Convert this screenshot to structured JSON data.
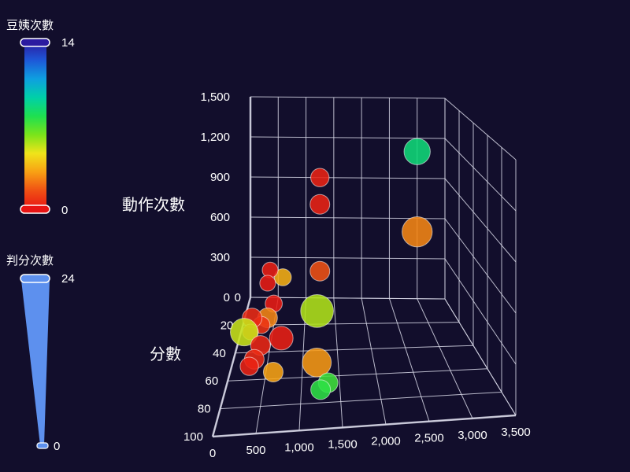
{
  "chart_data": {
    "type": "scatter3d",
    "visual_maps": {
      "color": {
        "title": "豆姨次數",
        "max": 14,
        "min": 0,
        "colors": [
          "#2b1aa0",
          "#1e58d8",
          "#0ea0e0",
          "#00d0a8",
          "#1ee050",
          "#7ae41a",
          "#f0e41a",
          "#f8a014",
          "#f05014",
          "#e81414"
        ]
      },
      "size": {
        "title": "判分次數",
        "max": 24,
        "min": 0,
        "color": "#5d90ee"
      }
    },
    "axes": {
      "y_name": "動作次數",
      "x_name": "分數",
      "y_ticks": [
        "1,500",
        "1,200",
        "900",
        "600",
        "300",
        "0"
      ],
      "x_ticks": [
        "0",
        "20",
        "40",
        "60",
        "80",
        "100"
      ],
      "z_ticks": [
        "0",
        "500",
        "1,000",
        "1,500",
        "2,000",
        "2,500",
        "3,000",
        "3,500"
      ],
      "x_range": [
        0,
        100
      ],
      "y_range": [
        0,
        1500
      ],
      "z_range": [
        0,
        3500
      ],
      "grid": true
    },
    "points": [
      {
        "x": 0,
        "y": 1100,
        "z": 3000,
        "color": 8.5,
        "size": 14
      },
      {
        "x": 0,
        "y": 500,
        "z": 3000,
        "color": 2.6,
        "size": 17
      },
      {
        "x": 0,
        "y": 900,
        "z": 1250,
        "color": 0.4,
        "size": 8
      },
      {
        "x": 0,
        "y": 700,
        "z": 1250,
        "color": 0.4,
        "size": 9
      },
      {
        "x": 0,
        "y": 200,
        "z": 1250,
        "color": 1.6,
        "size": 9
      },
      {
        "x": 10,
        "y": 0,
        "z": 1200,
        "color": 5.5,
        "size": 19
      },
      {
        "x": 5,
        "y": 200,
        "z": 600,
        "color": 3.5,
        "size": 7
      },
      {
        "x": 10,
        "y": 300,
        "z": 400,
        "color": 0.3,
        "size": 6
      },
      {
        "x": 15,
        "y": 250,
        "z": 380,
        "color": 0.2,
        "size": 6
      },
      {
        "x": 20,
        "y": 150,
        "z": 500,
        "color": 0.2,
        "size": 7
      },
      {
        "x": 20,
        "y": 50,
        "z": 400,
        "color": 2.6,
        "size": 9
      },
      {
        "x": 20,
        "y": 0,
        "z": 300,
        "color": 0.8,
        "size": 7
      },
      {
        "x": 20,
        "y": 50,
        "z": 150,
        "color": 0.6,
        "size": 9
      },
      {
        "x": 25,
        "y": 0,
        "z": 150,
        "color": 1.1,
        "size": 6
      },
      {
        "x": 25,
        "y": 0,
        "z": 50,
        "color": 5.2,
        "size": 15
      },
      {
        "x": 30,
        "y": 0,
        "z": 650,
        "color": 0.3,
        "size": 12
      },
      {
        "x": 35,
        "y": 0,
        "z": 350,
        "color": 0.5,
        "size": 9
      },
      {
        "x": 45,
        "y": 0,
        "z": 300,
        "color": 0.6,
        "size": 9
      },
      {
        "x": 50,
        "y": 0,
        "z": 250,
        "color": 0.4,
        "size": 8
      },
      {
        "x": 55,
        "y": 0,
        "z": 600,
        "color": 3.2,
        "size": 9
      },
      {
        "x": 55,
        "y": 50,
        "z": 1200,
        "color": 3.0,
        "size": 16
      },
      {
        "x": 65,
        "y": 0,
        "z": 1350,
        "color": 7.2,
        "size": 9
      },
      {
        "x": 70,
        "y": 0,
        "z": 1250,
        "color": 7.5,
        "size": 9
      }
    ]
  }
}
